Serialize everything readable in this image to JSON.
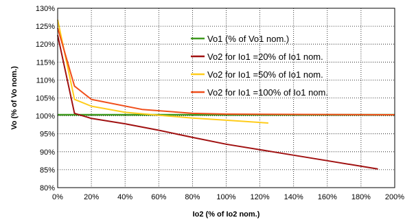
{
  "chart_data": {
    "type": "line",
    "xlabel": "Io2 (% of Io2 nom.)",
    "ylabel": "Vo (% of Vo nom.)",
    "xlim": [
      0,
      200
    ],
    "ylim": [
      80,
      130
    ],
    "grid": true,
    "grid_style": "dotted",
    "legend_position": "right-inside",
    "x_ticks": [
      "0%",
      "20%",
      "40%",
      "60%",
      "80%",
      "100%",
      "120%",
      "140%",
      "160%",
      "180%",
      "200%"
    ],
    "y_ticks": [
      "80%",
      "85%",
      "90%",
      "95%",
      "100%",
      "105%",
      "110%",
      "115%",
      "120%",
      "125%",
      "130%"
    ],
    "series": [
      {
        "name": "Vo1 (% of Vo1 nom.)",
        "color": "#3f9a1f",
        "x": [
          0,
          200
        ],
        "y": [
          100.3,
          100.3
        ]
      },
      {
        "name": "Vo2 for Io1 =20% of Io1 nom.",
        "color": "#a01010",
        "x": [
          0,
          10,
          20,
          40,
          60,
          80,
          100,
          130,
          160,
          190
        ],
        "y": [
          122.5,
          100.7,
          99.3,
          97.8,
          96.0,
          94.0,
          92.1,
          89.8,
          87.5,
          85.2
        ]
      },
      {
        "name": "Vo2 for Io1 =50% of Io1 nom.",
        "color": "#ffcc1a",
        "x": [
          0,
          10,
          20,
          40,
          60,
          80,
          100,
          125
        ],
        "y": [
          126.8,
          104.6,
          102.7,
          101.0,
          100.2,
          99.4,
          98.8,
          98.0
        ]
      },
      {
        "name": "Vo2 for Io1 =100% of Io1 nom.",
        "color": "#f04e1a",
        "x": [
          0,
          10,
          20,
          50,
          80,
          100,
          200
        ],
        "y": [
          124.5,
          108.3,
          104.6,
          101.8,
          100.7,
          100.5,
          100.3
        ]
      }
    ]
  }
}
